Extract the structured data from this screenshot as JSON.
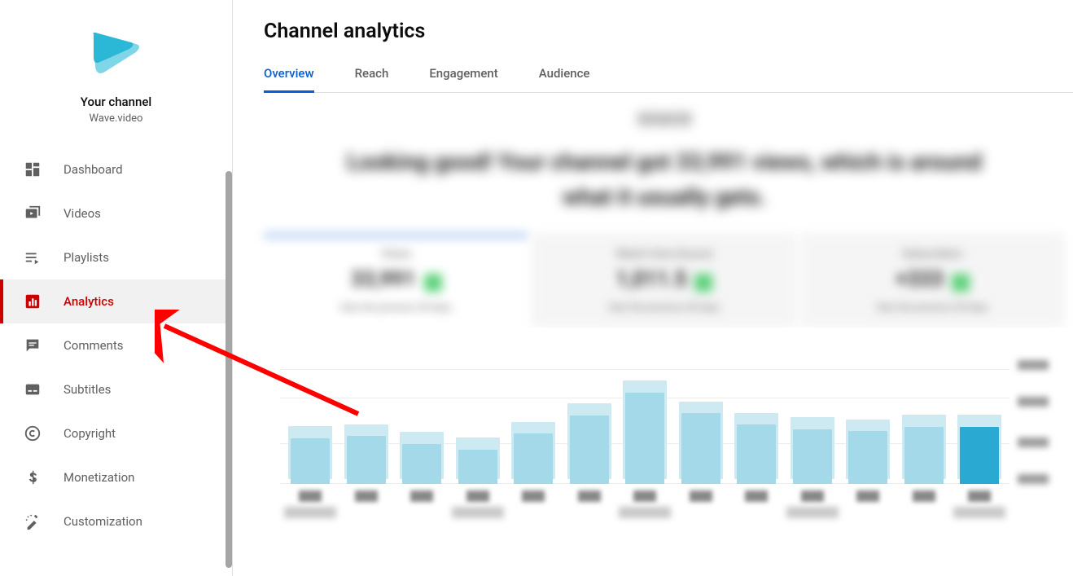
{
  "sidebar": {
    "channel_title": "Your channel",
    "channel_subtitle": "Wave.video",
    "logo_colors": {
      "light": "#7fd6e8",
      "dark": "#2bb8d6"
    },
    "items": [
      {
        "label": "Dashboard",
        "icon": "dashboard-icon",
        "active": false
      },
      {
        "label": "Videos",
        "icon": "videos-icon",
        "active": false
      },
      {
        "label": "Playlists",
        "icon": "playlists-icon",
        "active": false
      },
      {
        "label": "Analytics",
        "icon": "analytics-icon",
        "active": true
      },
      {
        "label": "Comments",
        "icon": "comments-icon",
        "active": false
      },
      {
        "label": "Subtitles",
        "icon": "subtitles-icon",
        "active": false
      },
      {
        "label": "Copyright",
        "icon": "copyright-icon",
        "active": false
      },
      {
        "label": "Monetization",
        "icon": "monetization-icon",
        "active": false
      },
      {
        "label": "Customization",
        "icon": "customization-icon",
        "active": false
      }
    ]
  },
  "page": {
    "title": "Channel analytics",
    "tabs": [
      {
        "label": "Overview",
        "active": true
      },
      {
        "label": "Reach",
        "active": false
      },
      {
        "label": "Engagement",
        "active": false
      },
      {
        "label": "Audience",
        "active": false
      }
    ],
    "summary": {
      "subtitle_placeholder": "28 text 28",
      "headline_placeholder": "Looking good! Your channel got 33,991 views, which is around what it usually gets."
    },
    "metric_tabs": [
      {
        "label": "Views",
        "value": "33,991",
        "delta_color": "#5dd27a",
        "sub": "than the previous 28 days",
        "active": true
      },
      {
        "label": "Watch time (hours)",
        "value": "1,011.5",
        "delta_color": "#5dd27a",
        "sub": "than the previous 28 days",
        "active": false
      },
      {
        "label": "Subscribers",
        "value": "+333",
        "delta_color": "#5dd27a",
        "sub": "than the previous 28 days",
        "active": false
      }
    ],
    "chart": {
      "type": "bar",
      "bar_color": "#a3d9e8",
      "bar_halo_color": "#cde9f1",
      "last_bar_color": "#2aaad2",
      "grid_color": "#ececec",
      "background_color": "#ffffff",
      "y_max": 100,
      "grid_lines_y": [
        0,
        35,
        75,
        100
      ],
      "values": [
        40,
        42,
        35,
        30,
        44,
        60,
        80,
        62,
        52,
        48,
        46,
        50,
        50
      ],
      "x_big_labels_at": [
        0,
        3,
        6,
        9,
        12
      ]
    },
    "annotation_arrow_color": "#ff0000"
  }
}
